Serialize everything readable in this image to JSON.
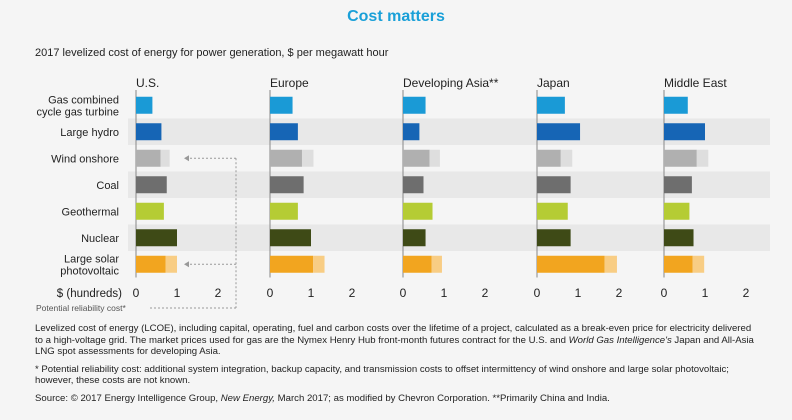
{
  "header": {
    "title": "Cost matters",
    "subtitle": "2017 levelized cost of energy for power generation, $ per megawatt hour"
  },
  "colors": {
    "gas": "#1a9ad6",
    "hydro": "#1665b5",
    "wind": "#b0b0b0",
    "coal": "#6e6e6e",
    "geothermal": "#b5cc34",
    "nuclear": "#3e4a16",
    "solar": "#f2a51f",
    "wind_reliability": "#dedede",
    "solar_reliability": "#f8cd84",
    "band": "#e8e8e8"
  },
  "chart_data": {
    "type": "bar",
    "orientation": "horizontal",
    "categories": [
      "Gas combined cycle gas turbine",
      "Large hydro",
      "Wind onshore",
      "Coal",
      "Geothermal",
      "Nuclear",
      "Large solar photovoltaic"
    ],
    "category_label_lines": [
      [
        "Gas combined",
        "cycle gas turbine"
      ],
      [
        "Large hydro"
      ],
      [
        "Wind onshore"
      ],
      [
        "Coal"
      ],
      [
        "Geothermal"
      ],
      [
        "Nuclear"
      ],
      [
        "Large solar",
        "photovoltaic"
      ]
    ],
    "panels": [
      {
        "name": "U.S.",
        "values": [
          0.4,
          0.62,
          0.6,
          0.75,
          0.68,
          1.0,
          0.72
        ],
        "reliability": [
          null,
          null,
          0.22,
          null,
          null,
          null,
          0.28
        ]
      },
      {
        "name": "Europe",
        "values": [
          0.55,
          0.68,
          0.78,
          0.82,
          0.68,
          1.0,
          1.05
        ],
        "reliability": [
          null,
          null,
          0.28,
          null,
          null,
          null,
          0.28
        ]
      },
      {
        "name": "Developing Asia**",
        "values": [
          0.55,
          0.4,
          0.65,
          0.5,
          0.72,
          0.55,
          0.7
        ],
        "reliability": [
          null,
          null,
          0.25,
          null,
          null,
          null,
          0.25
        ]
      },
      {
        "name": "Japan",
        "values": [
          0.68,
          1.05,
          0.58,
          0.82,
          0.75,
          0.82,
          1.65
        ],
        "reliability": [
          null,
          null,
          0.28,
          null,
          null,
          null,
          0.3
        ]
      },
      {
        "name": "Middle East",
        "values": [
          0.58,
          1.0,
          0.8,
          0.68,
          0.62,
          0.72,
          0.7
        ],
        "reliability": [
          null,
          null,
          0.28,
          null,
          null,
          null,
          0.28
        ]
      }
    ],
    "xlabel": "$ (hundreds)",
    "xlim": [
      0,
      2
    ],
    "xticks": [
      "0",
      "1",
      "2"
    ],
    "xtick_values": [
      0,
      1,
      2
    ],
    "annotation": "Potential reliability cost*",
    "grid": false
  },
  "notes": {
    "p1_a": "Levelized cost of energy (LCOE), including capital, operating, fuel and carbon costs over the lifetime of a project, calculated as a break-even price for electricity delivered to a high-voltage grid. The market prices used for gas are the Nymex Henry Hub front-month futures contract for the U.S. and ",
    "p1_italic": "World Gas Intelligence's",
    "p1_b": " Japan and All-Asia LNG spot assessments for developing Asia.",
    "p2": "* Potential reliability cost: additional system integration, backup capacity, and transmission costs to offset intermittency of wind onshore and large solar photovoltaic; however, these costs are not known.",
    "p3_a": "Source: © 2017 Energy Intelligence Group, ",
    "p3_italic": "New Energy,",
    "p3_b": " March 2017; as modified by Chevron Corporation. **Primarily China and India."
  }
}
